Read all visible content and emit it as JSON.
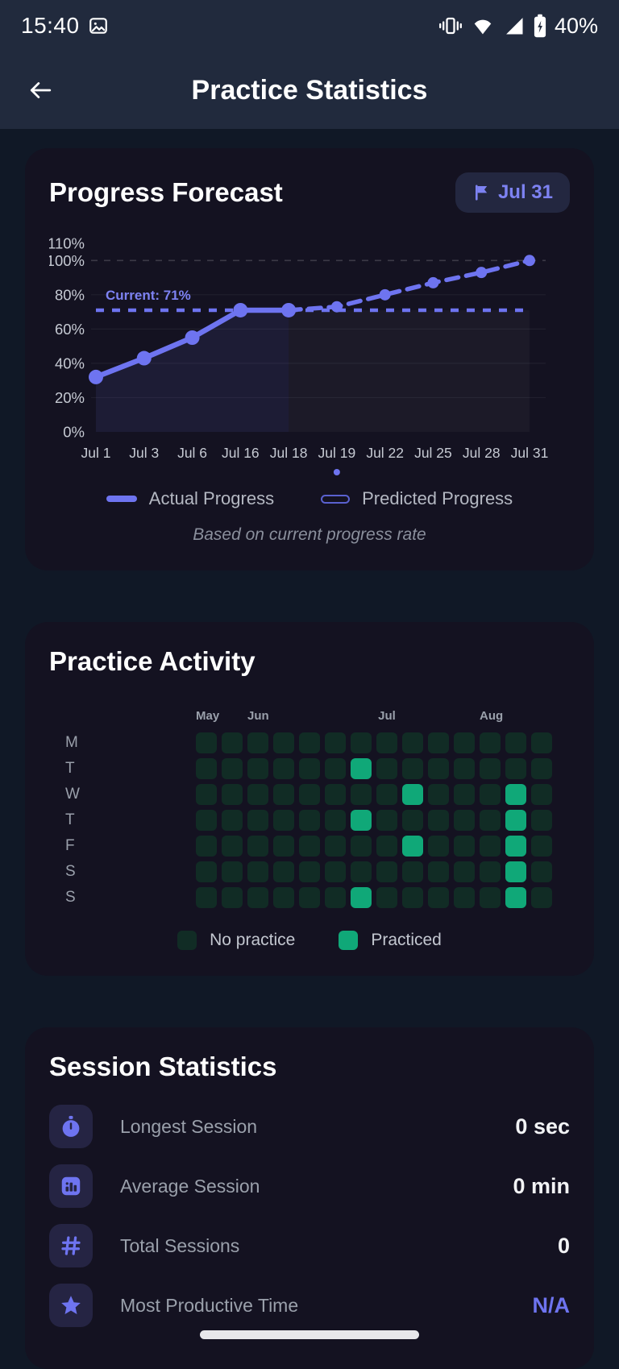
{
  "status_bar": {
    "time": "15:40",
    "battery_percent": "40%"
  },
  "header": {
    "title": "Practice Statistics"
  },
  "forecast_card": {
    "title": "Progress Forecast",
    "badge_label": "Jul 31",
    "legend_actual": "Actual Progress",
    "legend_predicted": "Predicted Progress",
    "caption": "Based on current progress rate"
  },
  "activity_card": {
    "title": "Practice Activity",
    "legend_no": "No practice",
    "legend_yes": "Practiced"
  },
  "stats_card": {
    "title": "Session Statistics",
    "rows": [
      {
        "key": "longest-session",
        "icon": "stopwatch",
        "label": "Longest Session",
        "value": "0 sec",
        "value_accent": false
      },
      {
        "key": "average-session",
        "icon": "bar-chart",
        "label": "Average Session",
        "value": "0 min",
        "value_accent": false
      },
      {
        "key": "total-sessions",
        "icon": "hash",
        "label": "Total Sessions",
        "value": "0",
        "value_accent": false
      },
      {
        "key": "most-productive-time",
        "icon": "star",
        "label": "Most Productive Time",
        "value": "N/A",
        "value_accent": true
      }
    ]
  },
  "colors": {
    "accent": "#6e74f0",
    "accent_text": "#7d82f2",
    "green": "#10a878",
    "cell_dark": "#112c25",
    "card_bg": "#141221",
    "chrome_bg": "#212a3d",
    "page_bg": "#101826",
    "axis_text": "#c6cad3"
  },
  "chart_data": [
    {
      "type": "line",
      "title": "Progress Forecast",
      "x": [
        "Jul 1",
        "Jul 3",
        "Jul 6",
        "Jul 16",
        "Jul 18",
        "Jul 19",
        "Jul 22",
        "Jul 25",
        "Jul 28",
        "Jul 31"
      ],
      "series": [
        {
          "name": "Actual Progress",
          "style": "solid",
          "values": [
            32,
            43,
            55,
            71,
            71,
            null,
            null,
            null,
            null,
            null
          ]
        },
        {
          "name": "Predicted Progress",
          "style": "dashed",
          "values": [
            null,
            null,
            null,
            null,
            71,
            73,
            80,
            87,
            93,
            100
          ]
        }
      ],
      "reference_line": {
        "label": "Current: 71%",
        "value": 71
      },
      "y_ticks": [
        110,
        100,
        80,
        60,
        40,
        20,
        0
      ],
      "ylim": [
        0,
        110
      ],
      "grid": "horizontal-faint, dashed at 100",
      "legend_position": "bottom"
    },
    {
      "type": "heatmap",
      "title": "Practice Activity",
      "rows": [
        "M",
        "T",
        "W",
        "T",
        "F",
        "S",
        "S"
      ],
      "cols": 14,
      "months": [
        {
          "label": "May",
          "col": 0
        },
        {
          "label": "Jun",
          "col": 2
        },
        {
          "label": "Jul",
          "col": 7
        },
        {
          "label": "Aug",
          "col": 11
        }
      ],
      "practiced_cells": [
        [
          1,
          6
        ],
        [
          2,
          8
        ],
        [
          2,
          12
        ],
        [
          3,
          6
        ],
        [
          3,
          12
        ],
        [
          4,
          8
        ],
        [
          4,
          12
        ],
        [
          5,
          12
        ],
        [
          6,
          6
        ],
        [
          6,
          12
        ]
      ],
      "legend": [
        {
          "label": "No practice",
          "color": "#112c25"
        },
        {
          "label": "Practiced",
          "color": "#10a878"
        }
      ]
    }
  ]
}
